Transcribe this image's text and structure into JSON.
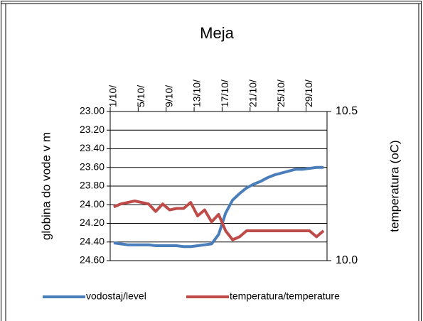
{
  "chart_data": {
    "type": "line",
    "title": "Meja",
    "y_label": "globina do vode v m",
    "y2_label": "temperatura (oC)",
    "categories": [
      "1/10/",
      null,
      null,
      null,
      "5/10/",
      null,
      null,
      null,
      "9/10/",
      null,
      null,
      null,
      "13/10/",
      null,
      null,
      null,
      "17/10/",
      null,
      null,
      null,
      "21/10/",
      null,
      null,
      null,
      "25/10/",
      null,
      null,
      null,
      "29/10/",
      null,
      null
    ],
    "series": [
      {
        "name": "vodostaj/level",
        "color": "#4a7ebb",
        "axis": "y",
        "values": [
          24.41,
          24.42,
          24.43,
          24.43,
          24.43,
          24.43,
          24.44,
          24.44,
          24.44,
          24.44,
          24.45,
          24.45,
          24.44,
          24.43,
          24.42,
          24.32,
          24.09,
          23.95,
          23.88,
          23.82,
          23.78,
          23.75,
          23.71,
          23.68,
          23.66,
          23.64,
          23.62,
          23.62,
          23.61,
          23.6,
          23.6
        ]
      },
      {
        "name": "temperatura/temperature",
        "color": "#be4b48",
        "axis": "y2",
        "values": [
          10.18,
          10.19,
          10.195,
          10.2,
          10.195,
          10.19,
          10.165,
          10.19,
          10.17,
          10.175,
          10.175,
          10.195,
          10.15,
          10.17,
          10.13,
          10.155,
          10.1,
          10.07,
          10.08,
          10.1,
          10.1,
          10.1,
          10.1,
          10.1,
          10.1,
          10.1,
          10.1,
          10.1,
          10.1,
          10.08,
          10.1
        ]
      }
    ],
    "ylim": [
      23,
      24.6
    ],
    "y_reversed": true,
    "yticks": [
      {
        "value": 23,
        "label": "23.00"
      },
      {
        "value": 23.2,
        "label": "23.20"
      },
      {
        "value": 23.4,
        "label": "23.40"
      },
      {
        "value": 23.6,
        "label": "23.60"
      },
      {
        "value": 23.8,
        "label": "23.80"
      },
      {
        "value": 24,
        "label": "24.00"
      },
      {
        "value": 24.2,
        "label": "24.20"
      },
      {
        "value": 24.4,
        "label": "24.40"
      },
      {
        "value": 24.6,
        "label": "24.60"
      }
    ],
    "y2lim": [
      10,
      10.5
    ],
    "y2ticks": [
      {
        "value": 10,
        "label": "10.0"
      },
      10.5
    ],
    "grid": true,
    "legend": "bottom"
  }
}
